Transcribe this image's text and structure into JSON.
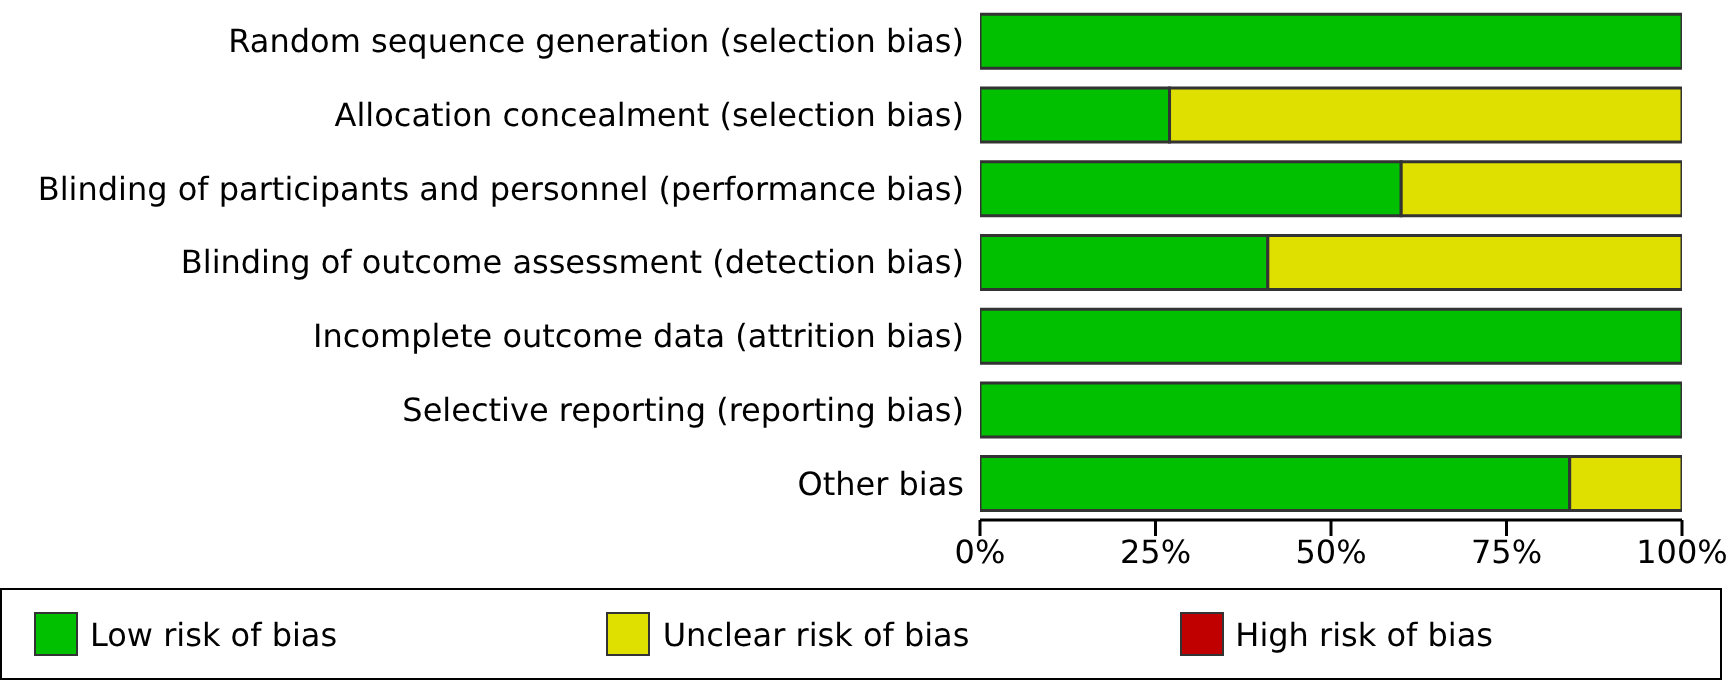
{
  "chart_data": {
    "type": "bar",
    "orientation": "horizontal",
    "stacked": true,
    "categories": [
      "Random sequence generation (selection bias)",
      "Allocation concealment (selection bias)",
      "Blinding of participants and personnel (performance bias)",
      "Blinding of outcome assessment (detection bias)",
      "Incomplete outcome data (attrition bias)",
      "Selective reporting (reporting bias)",
      "Other bias"
    ],
    "series": [
      {
        "name": "Low risk of bias",
        "color": "#00c000",
        "values": [
          100,
          27,
          60,
          41,
          100,
          100,
          84
        ]
      },
      {
        "name": "Unclear risk of bias",
        "color": "#e0e000",
        "values": [
          0,
          73,
          40,
          59,
          0,
          0,
          16
        ]
      },
      {
        "name": "High risk of bias",
        "color": "#c00000",
        "values": [
          0,
          0,
          0,
          0,
          0,
          0,
          0
        ]
      }
    ],
    "xlim": [
      0,
      100
    ],
    "xticks": [
      {
        "value": 0,
        "label": "0%"
      },
      {
        "value": 25,
        "label": "25%"
      },
      {
        "value": 50,
        "label": "50%"
      },
      {
        "value": 75,
        "label": "75%"
      },
      {
        "value": 100,
        "label": "100%"
      }
    ],
    "grid": false,
    "legend": "bottom"
  }
}
